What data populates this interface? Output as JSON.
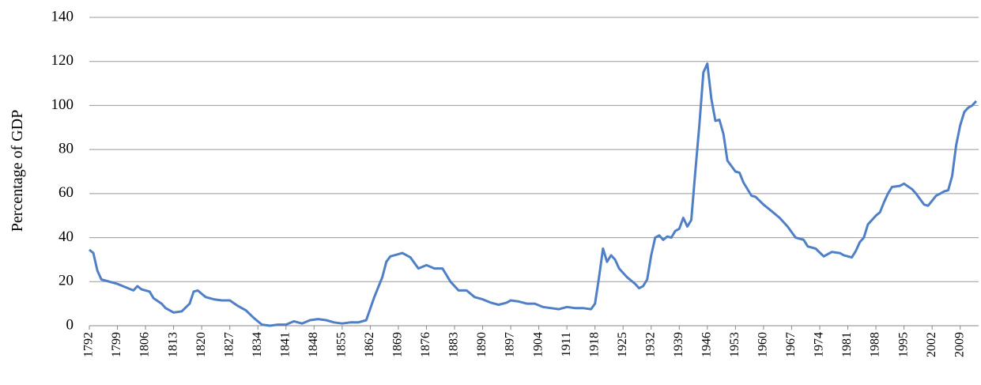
{
  "chart_data": {
    "type": "line",
    "y_label": "Percentage of GDP",
    "color": "#4f7fc6",
    "grid": true,
    "x": [
      1792,
      1793,
      1794,
      1795,
      1797,
      1799,
      1801,
      1803,
      1804,
      1805,
      1807,
      1808,
      1810,
      1811,
      1813,
      1815,
      1817,
      1818,
      1819,
      1821,
      1823,
      1825,
      1827,
      1829,
      1831,
      1833,
      1835,
      1837,
      1839,
      1841,
      1843,
      1845,
      1847,
      1849,
      1851,
      1853,
      1855,
      1857,
      1859,
      1861,
      1863,
      1865,
      1866,
      1867,
      1868,
      1870,
      1872,
      1874,
      1876,
      1878,
      1880,
      1882,
      1884,
      1886,
      1888,
      1890,
      1892,
      1894,
      1896,
      1897,
      1899,
      1901,
      1903,
      1905,
      1907,
      1909,
      1911,
      1913,
      1915,
      1917,
      1918,
      1919,
      1920,
      1921,
      1922,
      1923,
      1924,
      1926,
      1928,
      1929,
      1930,
      1931,
      1932,
      1933,
      1934,
      1935,
      1936,
      1937,
      1938,
      1939,
      1940,
      1941,
      1942,
      1943,
      1944,
      1945,
      1946,
      1947,
      1948,
      1949,
      1950,
      1951,
      1953,
      1954,
      1955,
      1957,
      1958,
      1960,
      1962,
      1964,
      1966,
      1968,
      1970,
      1971,
      1973,
      1975,
      1977,
      1979,
      1980,
      1982,
      1983,
      1984,
      1985,
      1986,
      1988,
      1989,
      1990,
      1991,
      1992,
      1994,
      1995,
      1997,
      1998,
      2000,
      2001,
      2003,
      2004,
      2005,
      2006,
      2007,
      2008,
      2009,
      2010,
      2011,
      2012,
      2013
    ],
    "values": [
      34.5,
      33,
      25,
      21,
      20,
      19,
      17.5,
      16,
      18,
      16.5,
      15.5,
      12.5,
      10,
      8,
      6,
      6.5,
      10,
      15.5,
      16,
      13,
      12,
      11.5,
      11.5,
      9,
      7,
      3.5,
      0.5,
      0,
      0.5,
      0.5,
      2,
      1,
      2.5,
      3,
      2.5,
      1.5,
      1,
      1.5,
      1.5,
      2.5,
      13,
      22,
      29,
      31.5,
      32,
      33,
      31,
      26,
      27.5,
      26,
      26,
      20,
      16,
      16,
      13,
      12,
      10.5,
      9.5,
      10.5,
      11.5,
      11,
      10,
      10,
      8.5,
      8,
      7.5,
      8.5,
      8,
      8,
      7.5,
      10,
      22,
      35,
      29,
      32,
      30,
      26,
      22,
      19,
      17,
      18,
      21,
      32,
      40,
      41,
      39,
      40.5,
      40,
      43,
      44,
      49,
      45,
      48,
      70,
      91,
      115,
      119,
      103,
      93,
      93.5,
      87,
      75,
      70,
      69.5,
      65,
      59,
      58.5,
      55,
      52,
      49,
      45,
      40,
      39,
      36,
      35,
      31.5,
      33.5,
      33,
      32,
      31,
      34,
      38,
      40,
      46,
      50,
      51.5,
      56,
      60,
      63,
      63.5,
      64.5,
      62,
      60,
      55,
      54.5,
      59,
      60,
      61,
      61.5,
      68,
      82,
      91,
      97,
      99,
      100,
      102
    ],
    "xlim": [
      1792,
      2013
    ],
    "xticks": [
      1792,
      1799,
      1806,
      1813,
      1820,
      1827,
      1834,
      1841,
      1848,
      1855,
      1862,
      1869,
      1876,
      1883,
      1890,
      1897,
      1904,
      1911,
      1918,
      1925,
      1932,
      1939,
      1946,
      1953,
      1960,
      1967,
      1974,
      1981,
      1988,
      1995,
      2002,
      2009
    ],
    "ylim": [
      0,
      140
    ],
    "yticks": [
      0,
      20,
      40,
      60,
      80,
      100,
      120,
      140
    ]
  }
}
